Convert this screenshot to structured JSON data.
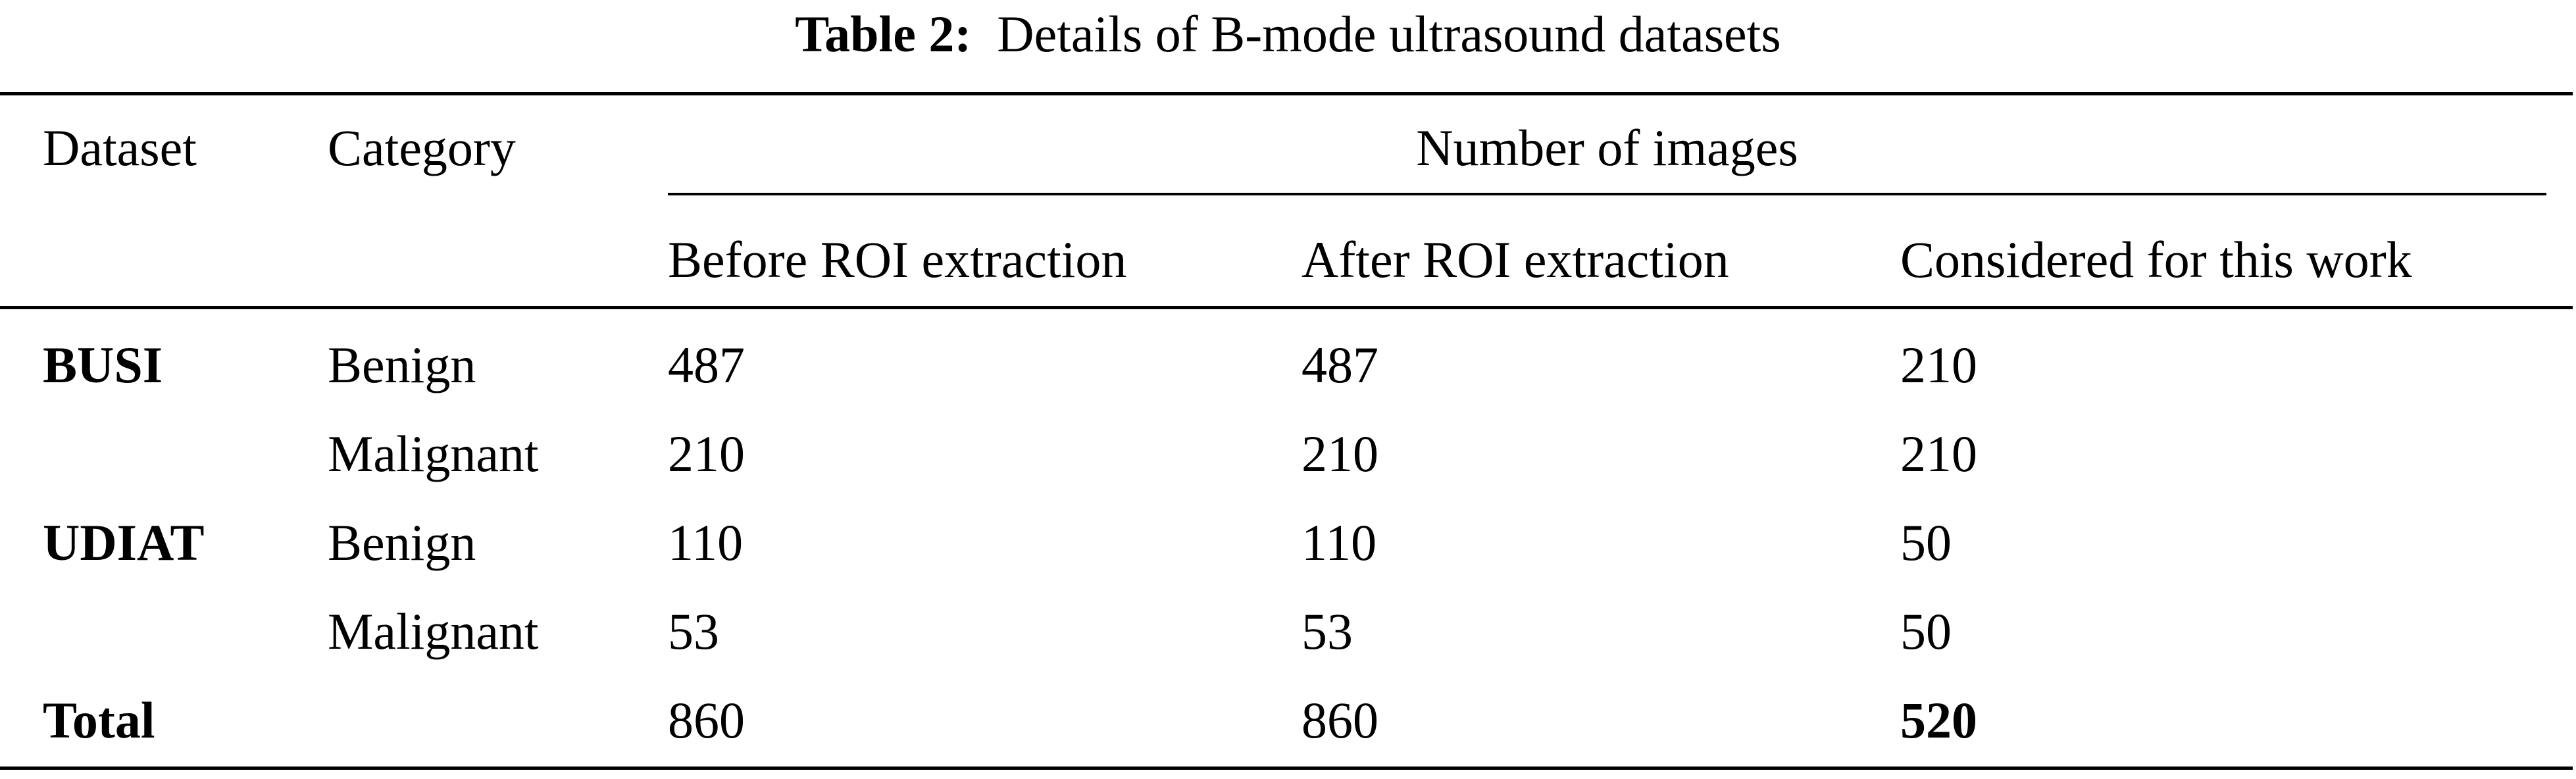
{
  "caption": {
    "label": "Table 2:",
    "text": "Details of B-mode ultrasound datasets"
  },
  "table": {
    "headers": {
      "dataset": "Dataset",
      "category": "Category",
      "group": "Number of images",
      "before": "Before ROI extraction",
      "after": "After ROI extraction",
      "considered": "Considered for this work"
    },
    "rows": [
      {
        "dataset": "BUSI",
        "category": "Benign",
        "before": "487",
        "after": "487",
        "considered": "210"
      },
      {
        "dataset": "",
        "category": "Malignant",
        "before": "210",
        "after": "210",
        "considered": "210"
      },
      {
        "dataset": "UDIAT",
        "category": "Benign",
        "before": "110",
        "after": "110",
        "considered": "50"
      },
      {
        "dataset": "",
        "category": "Malignant",
        "before": "53",
        "after": "53",
        "considered": "50"
      },
      {
        "dataset": "Total",
        "category": "",
        "before": "860",
        "after": "860",
        "considered": "520"
      }
    ]
  }
}
